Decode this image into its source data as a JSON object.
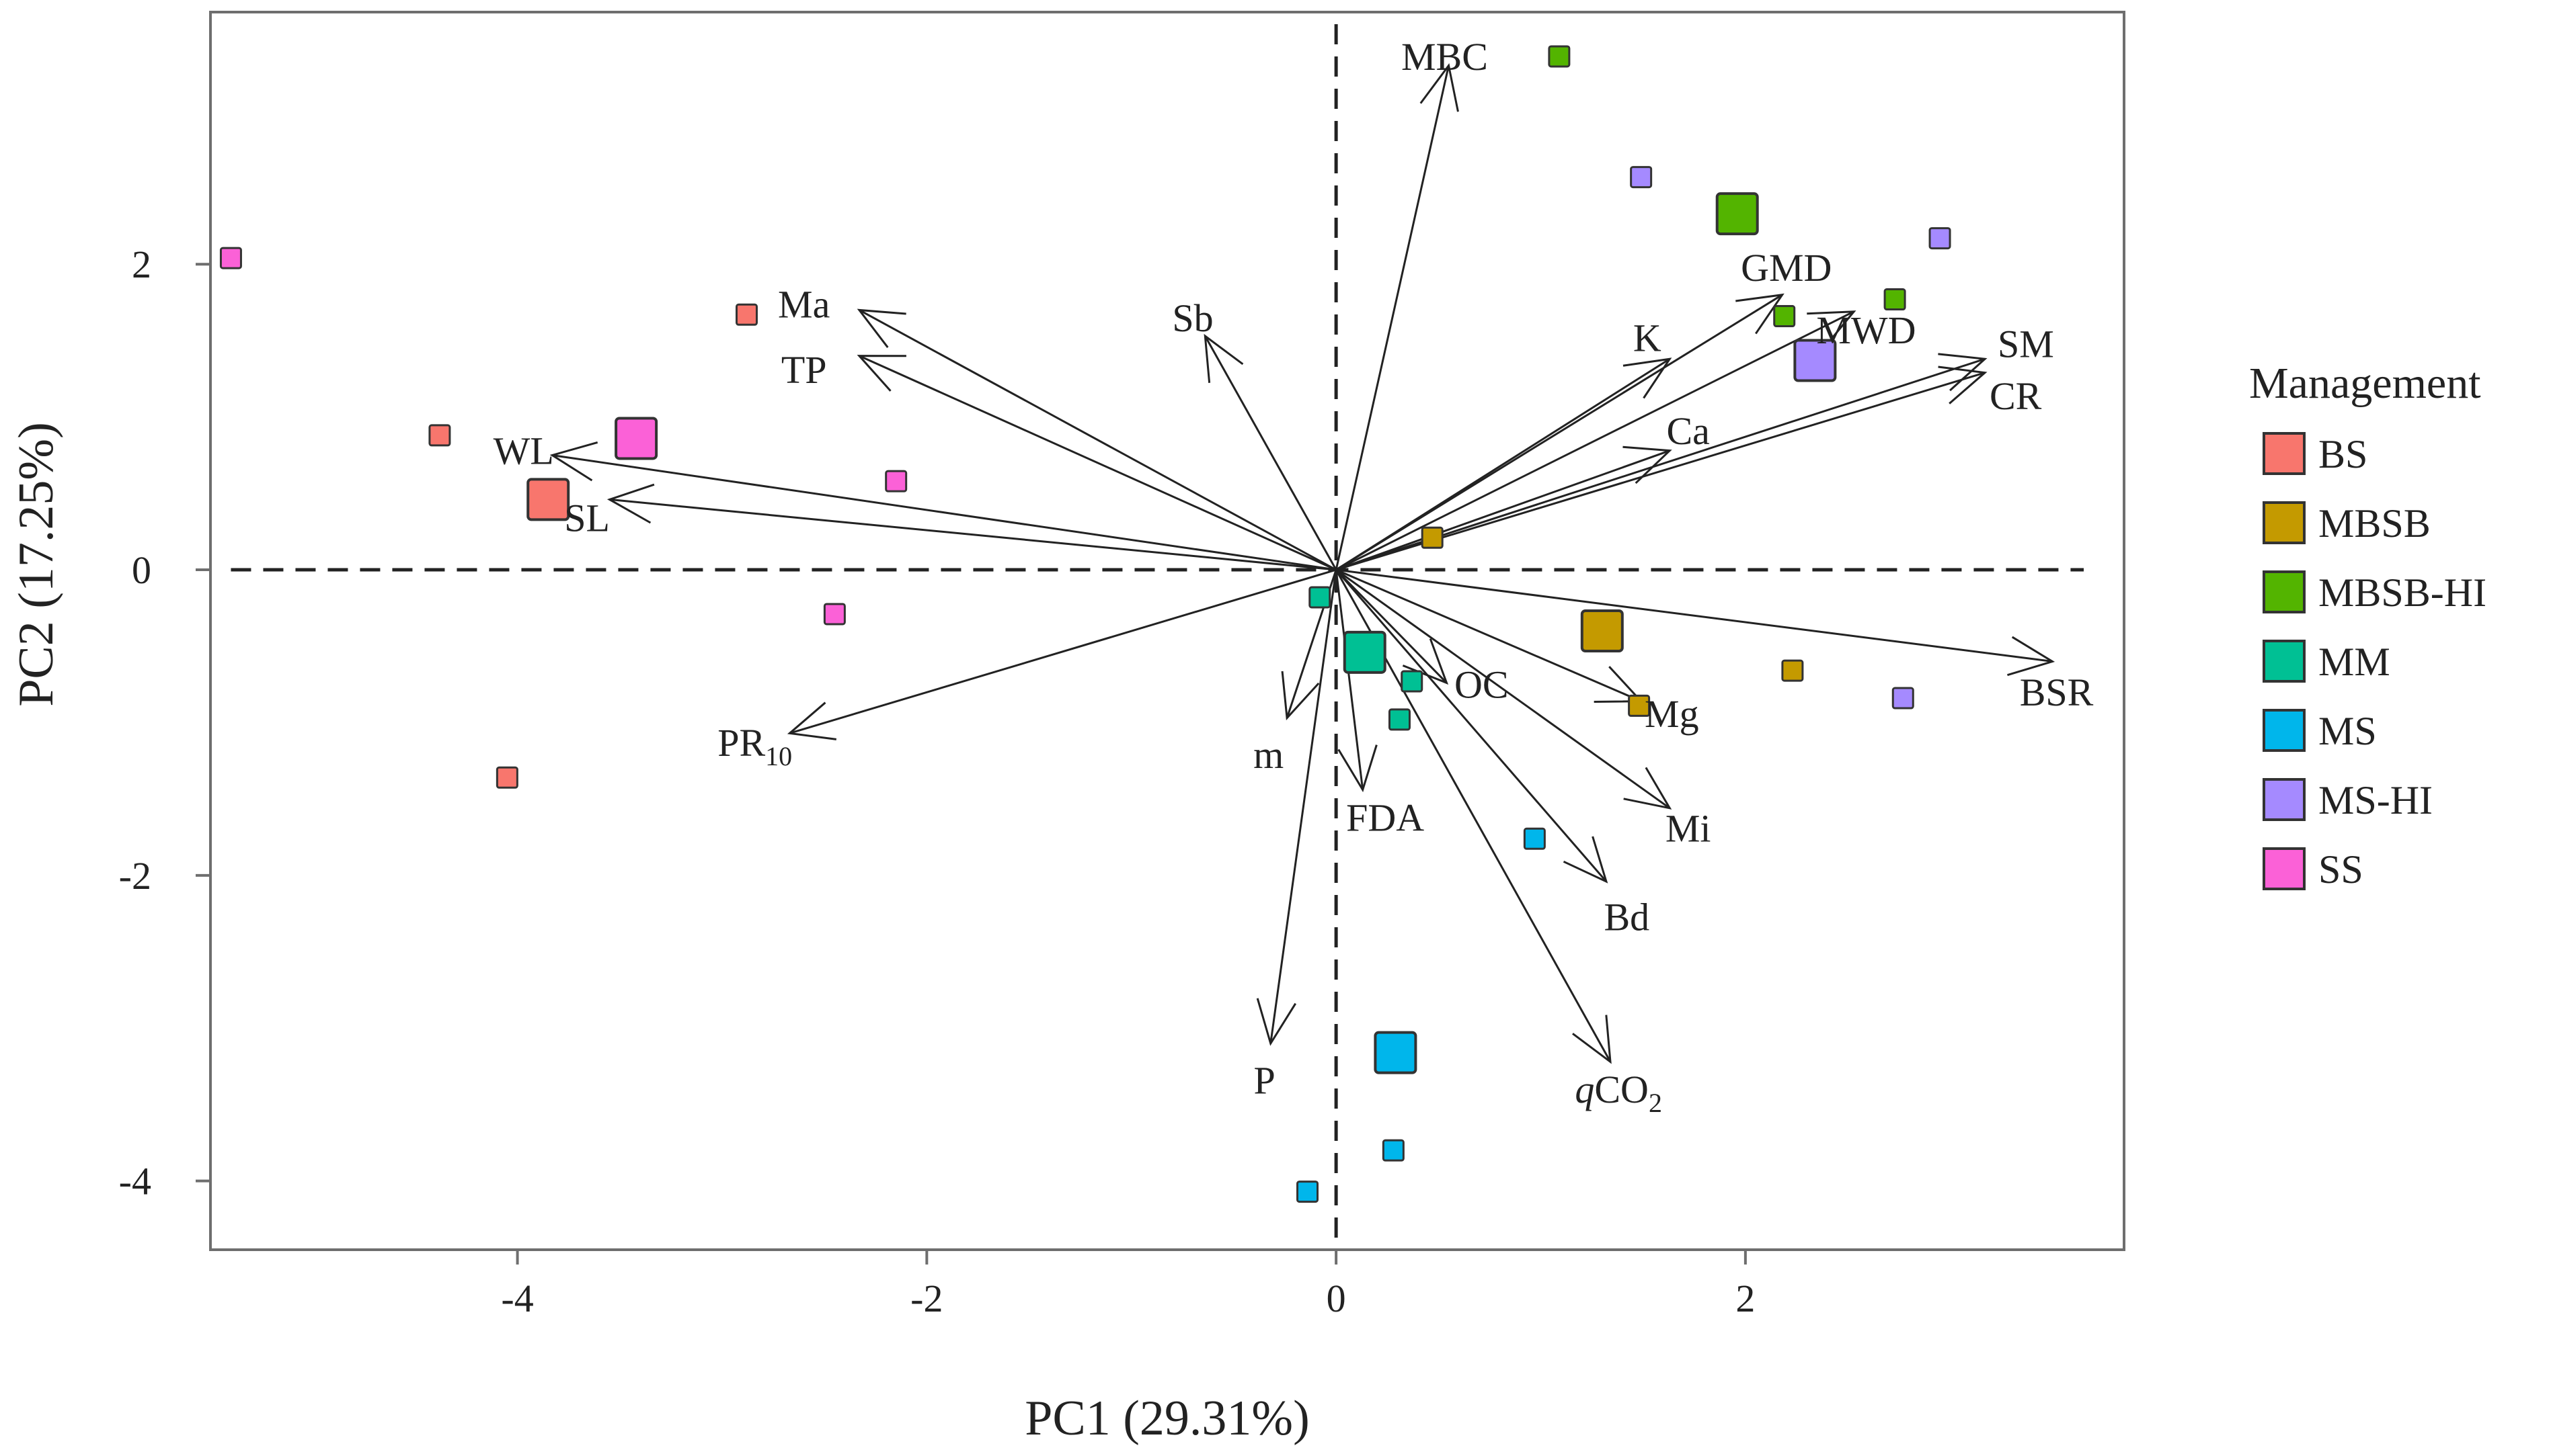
{
  "chart_data": {
    "type": "scatter",
    "subtype": "pca-biplot",
    "xlabel": "PC1 (29.31%)",
    "ylabel": "PC2 (17.25%)",
    "xlim": [
      -5.5,
      3.85
    ],
    "ylim": [
      -4.45,
      3.65
    ],
    "xticks": [
      -4,
      -2,
      0,
      2
    ],
    "yticks": [
      -4,
      -2,
      0,
      2
    ],
    "tick_labels_x": [
      "-4",
      "-2",
      "0",
      "2"
    ],
    "tick_labels_y": [
      "-4",
      "-2",
      "0",
      "2"
    ],
    "grid": false,
    "reference_lines": {
      "x": 0,
      "y": 0,
      "style": "dashed"
    },
    "legend": {
      "title": "Management",
      "position": "right",
      "entries": [
        {
          "name": "BS",
          "color": "#F8766D"
        },
        {
          "name": "MBSB",
          "color": "#C49A00"
        },
        {
          "name": "MBSB-HI",
          "color": "#53B400"
        },
        {
          "name": "MM",
          "color": "#00C094"
        },
        {
          "name": "MS",
          "color": "#00B6EB"
        },
        {
          "name": "MS-HI",
          "color": "#A58AFF"
        },
        {
          "name": "SS",
          "color": "#FB61D7"
        }
      ]
    },
    "series": [
      {
        "name": "BS",
        "color": "#F8766D",
        "points": [
          {
            "x": -2.88,
            "y": 1.67
          },
          {
            "x": -4.38,
            "y": 0.88
          },
          {
            "x": -4.05,
            "y": -1.36
          }
        ],
        "centroid": {
          "x": -3.85,
          "y": 0.46
        }
      },
      {
        "name": "MBSB",
        "color": "#C49A00",
        "points": [
          {
            "x": 0.47,
            "y": 0.21
          },
          {
            "x": 1.48,
            "y": -0.89
          },
          {
            "x": 2.23,
            "y": -0.66
          }
        ],
        "centroid": {
          "x": 1.3,
          "y": -0.4
        }
      },
      {
        "name": "MBSB-HI",
        "color": "#53B400",
        "points": [
          {
            "x": 1.09,
            "y": 3.36
          },
          {
            "x": 2.19,
            "y": 1.66
          },
          {
            "x": 2.73,
            "y": 1.77
          }
        ],
        "centroid": {
          "x": 1.96,
          "y": 2.33
        }
      },
      {
        "name": "MM",
        "color": "#00C094",
        "points": [
          {
            "x": -0.08,
            "y": -0.18
          },
          {
            "x": 0.37,
            "y": -0.73
          },
          {
            "x": 0.31,
            "y": -0.98
          }
        ],
        "centroid": {
          "x": 0.14,
          "y": -0.54
        }
      },
      {
        "name": "MS",
        "color": "#00B6EB",
        "points": [
          {
            "x": 0.97,
            "y": -1.76
          },
          {
            "x": 0.28,
            "y": -3.8
          },
          {
            "x": -0.14,
            "y": -4.07
          }
        ],
        "centroid": {
          "x": 0.29,
          "y": -3.16
        }
      },
      {
        "name": "MS-HI",
        "color": "#A58AFF",
        "points": [
          {
            "x": 1.49,
            "y": 2.57
          },
          {
            "x": 2.95,
            "y": 2.17
          },
          {
            "x": 2.77,
            "y": -0.84
          }
        ],
        "centroid": {
          "x": 2.34,
          "y": 1.37
        }
      },
      {
        "name": "SS",
        "color": "#FB61D7",
        "points": [
          {
            "x": -5.4,
            "y": 2.04
          },
          {
            "x": -2.15,
            "y": 0.58
          },
          {
            "x": -2.45,
            "y": -0.29
          }
        ],
        "centroid": {
          "x": -3.42,
          "y": 0.86
        }
      }
    ],
    "loadings": [
      {
        "name": "MBC",
        "x": 0.55,
        "y": 3.3,
        "label_x": 0.53,
        "label_y": 3.36
      },
      {
        "name": "Sb",
        "x": -0.64,
        "y": 1.53,
        "label_x": -0.7,
        "label_y": 1.65
      },
      {
        "name": "Ma",
        "x": -2.33,
        "y": 1.7,
        "label_x": -2.6,
        "label_y": 1.74
      },
      {
        "name": "TP",
        "x": -2.33,
        "y": 1.4,
        "label_x": -2.6,
        "label_y": 1.31
      },
      {
        "name": "WL",
        "x": -3.83,
        "y": 0.75,
        "label_x": -3.97,
        "label_y": 0.78
      },
      {
        "name": "SL",
        "x": -3.55,
        "y": 0.46,
        "label_x": -3.66,
        "label_y": 0.34
      },
      {
        "name": "PR10",
        "x": -2.67,
        "y": -1.07,
        "label_x": -2.84,
        "label_y": -1.13
      },
      {
        "name": "m",
        "x": -0.24,
        "y": -0.97,
        "label_x": -0.33,
        "label_y": -1.21
      },
      {
        "name": "P",
        "x": -0.32,
        "y": -3.1,
        "label_x": -0.35,
        "label_y": -3.34
      },
      {
        "name": "FDA",
        "x": 0.13,
        "y": -1.44,
        "label_x": 0.24,
        "label_y": -1.62
      },
      {
        "name": "OC",
        "x": 0.54,
        "y": -0.74,
        "label_x": 0.71,
        "label_y": -0.75
      },
      {
        "name": "qCO2",
        "x": 1.34,
        "y": -3.22,
        "label_x": 1.38,
        "label_y": -3.4
      },
      {
        "name": "Bd",
        "x": 1.32,
        "y": -2.04,
        "label_x": 1.42,
        "label_y": -2.27
      },
      {
        "name": "Mi",
        "x": 1.63,
        "y": -1.56,
        "label_x": 1.72,
        "label_y": -1.69
      },
      {
        "name": "Mg",
        "x": 1.49,
        "y": -0.86,
        "label_x": 1.64,
        "label_y": -0.94
      },
      {
        "name": "BSR",
        "x": 3.5,
        "y": -0.6,
        "label_x": 3.52,
        "label_y": -0.8
      },
      {
        "name": "CR",
        "x": 3.17,
        "y": 1.29,
        "label_x": 3.32,
        "label_y": 1.14
      },
      {
        "name": "SM",
        "x": 3.17,
        "y": 1.38,
        "label_x": 3.37,
        "label_y": 1.48
      },
      {
        "name": "MWD",
        "x": 2.53,
        "y": 1.69,
        "label_x": 2.59,
        "label_y": 1.57
      },
      {
        "name": "GMD",
        "x": 2.18,
        "y": 1.8,
        "label_x": 2.2,
        "label_y": 1.98
      },
      {
        "name": "K",
        "x": 1.63,
        "y": 1.38,
        "label_x": 1.52,
        "label_y": 1.52
      },
      {
        "name": "Ca",
        "x": 1.63,
        "y": 0.78,
        "label_x": 1.72,
        "label_y": 0.91
      }
    ]
  }
}
